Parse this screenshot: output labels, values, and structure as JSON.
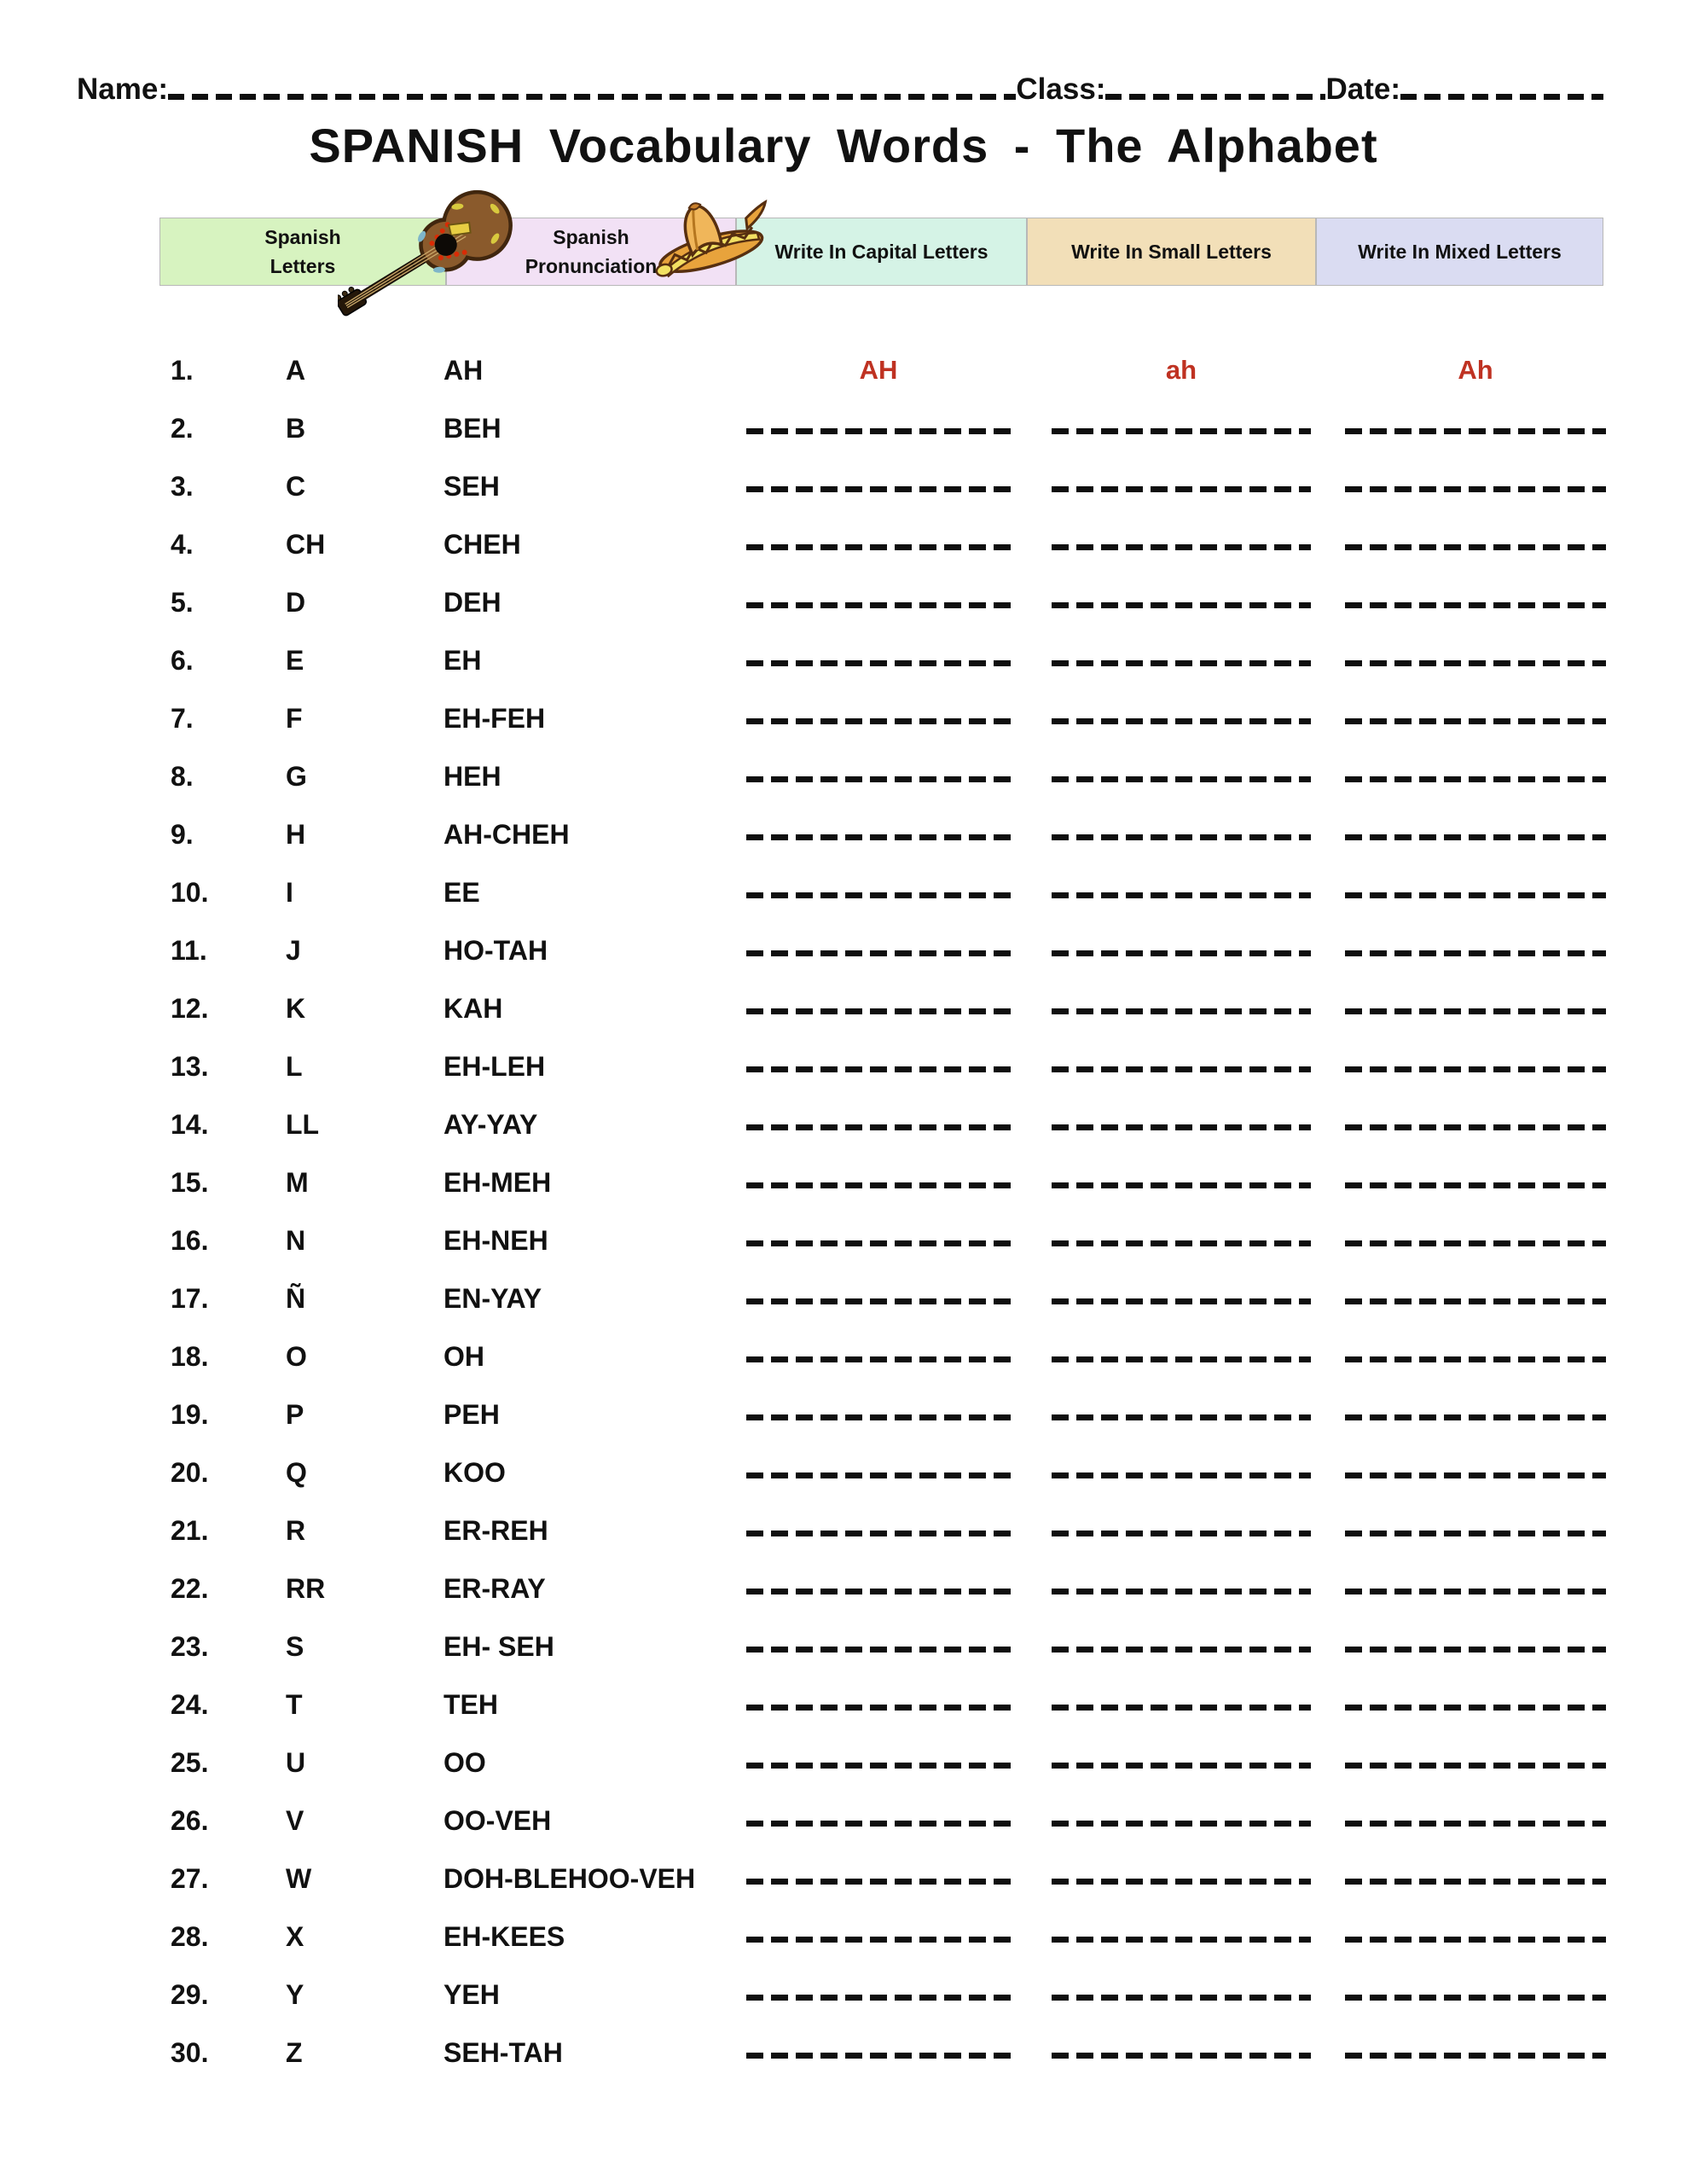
{
  "header_fields": {
    "name_label": "Name:",
    "class_label": "Class:",
    "date_label": "Date:"
  },
  "title": "SPANISH Vocabulary Words - The Alphabet",
  "images": {
    "guitar": "mexican-guitar-clipart",
    "sombrero": "sombrero-hat-clipart"
  },
  "colors": {
    "example_text": "#bf3222",
    "line_color": "#0f0f0f",
    "header_letters_bg": "#d7f3c0",
    "header_pronunciation_bg": "#f2e1f5",
    "header_capital_bg": "#d5f3e6",
    "header_small_bg": "#f2dfb8",
    "header_mixed_bg": "#dadcf2"
  },
  "table": {
    "columns": [
      {
        "label": "Spanish\nLetters",
        "bg": "#d7f3c0"
      },
      {
        "label": "Spanish\nPronunciation",
        "bg": "#f2e1f5"
      },
      {
        "label": "Write In Capital Letters",
        "bg": "#d5f3e6"
      },
      {
        "label": "Write In Small Letters",
        "bg": "#f2dfb8"
      },
      {
        "label": "Write In Mixed Letters",
        "bg": "#dadcf2"
      }
    ],
    "rows": [
      {
        "num": "1.",
        "letter": "A",
        "pron": "AH",
        "example": {
          "capital": "AH",
          "small": "ah",
          "mixed": "Ah"
        }
      },
      {
        "num": "2.",
        "letter": "B",
        "pron": "BEH"
      },
      {
        "num": "3.",
        "letter": "C",
        "pron": "SEH"
      },
      {
        "num": "4.",
        "letter": "CH",
        "pron": "CHEH"
      },
      {
        "num": "5.",
        "letter": "D",
        "pron": "DEH"
      },
      {
        "num": "6.",
        "letter": "E",
        "pron": "EH"
      },
      {
        "num": "7.",
        "letter": "F",
        "pron": "EH-FEH"
      },
      {
        "num": "8.",
        "letter": "G",
        "pron": "HEH"
      },
      {
        "num": "9.",
        "letter": "H",
        "pron": "AH-CHEH"
      },
      {
        "num": "10.",
        "letter": "I",
        "pron": "EE"
      },
      {
        "num": "11.",
        "letter": "J",
        "pron": "HO-TAH"
      },
      {
        "num": "12.",
        "letter": "K",
        "pron": "KAH"
      },
      {
        "num": "13.",
        "letter": "L",
        "pron": "EH-LEH"
      },
      {
        "num": "14.",
        "letter": "LL",
        "pron": "AY-YAY"
      },
      {
        "num": "15.",
        "letter": "M",
        "pron": "EH-MEH"
      },
      {
        "num": "16.",
        "letter": "N",
        "pron": "EH-NEH"
      },
      {
        "num": "17.",
        "letter": "Ñ",
        "pron": "EN-YAY"
      },
      {
        "num": "18.",
        "letter": "O",
        "pron": "OH"
      },
      {
        "num": "19.",
        "letter": "P",
        "pron": "PEH"
      },
      {
        "num": "20.",
        "letter": "Q",
        "pron": "KOO"
      },
      {
        "num": "21.",
        "letter": "R",
        "pron": "ER-REH"
      },
      {
        "num": "22.",
        "letter": "RR",
        "pron": "ER-RAY"
      },
      {
        "num": "23.",
        "letter": "S",
        "pron": "EH- SEH"
      },
      {
        "num": "24.",
        "letter": "T",
        "pron": "TEH"
      },
      {
        "num": "25.",
        "letter": "U",
        "pron": "OO"
      },
      {
        "num": "26.",
        "letter": "V",
        "pron": "OO-VEH"
      },
      {
        "num": "27.",
        "letter": "W",
        "pron": "DOH-BLEHOO-VEH"
      },
      {
        "num": "28.",
        "letter": "X",
        "pron": "EH-KEES"
      },
      {
        "num": "29.",
        "letter": "Y",
        "pron": "YEH"
      },
      {
        "num": "30.",
        "letter": "Z",
        "pron": "SEH-TAH"
      }
    ]
  }
}
